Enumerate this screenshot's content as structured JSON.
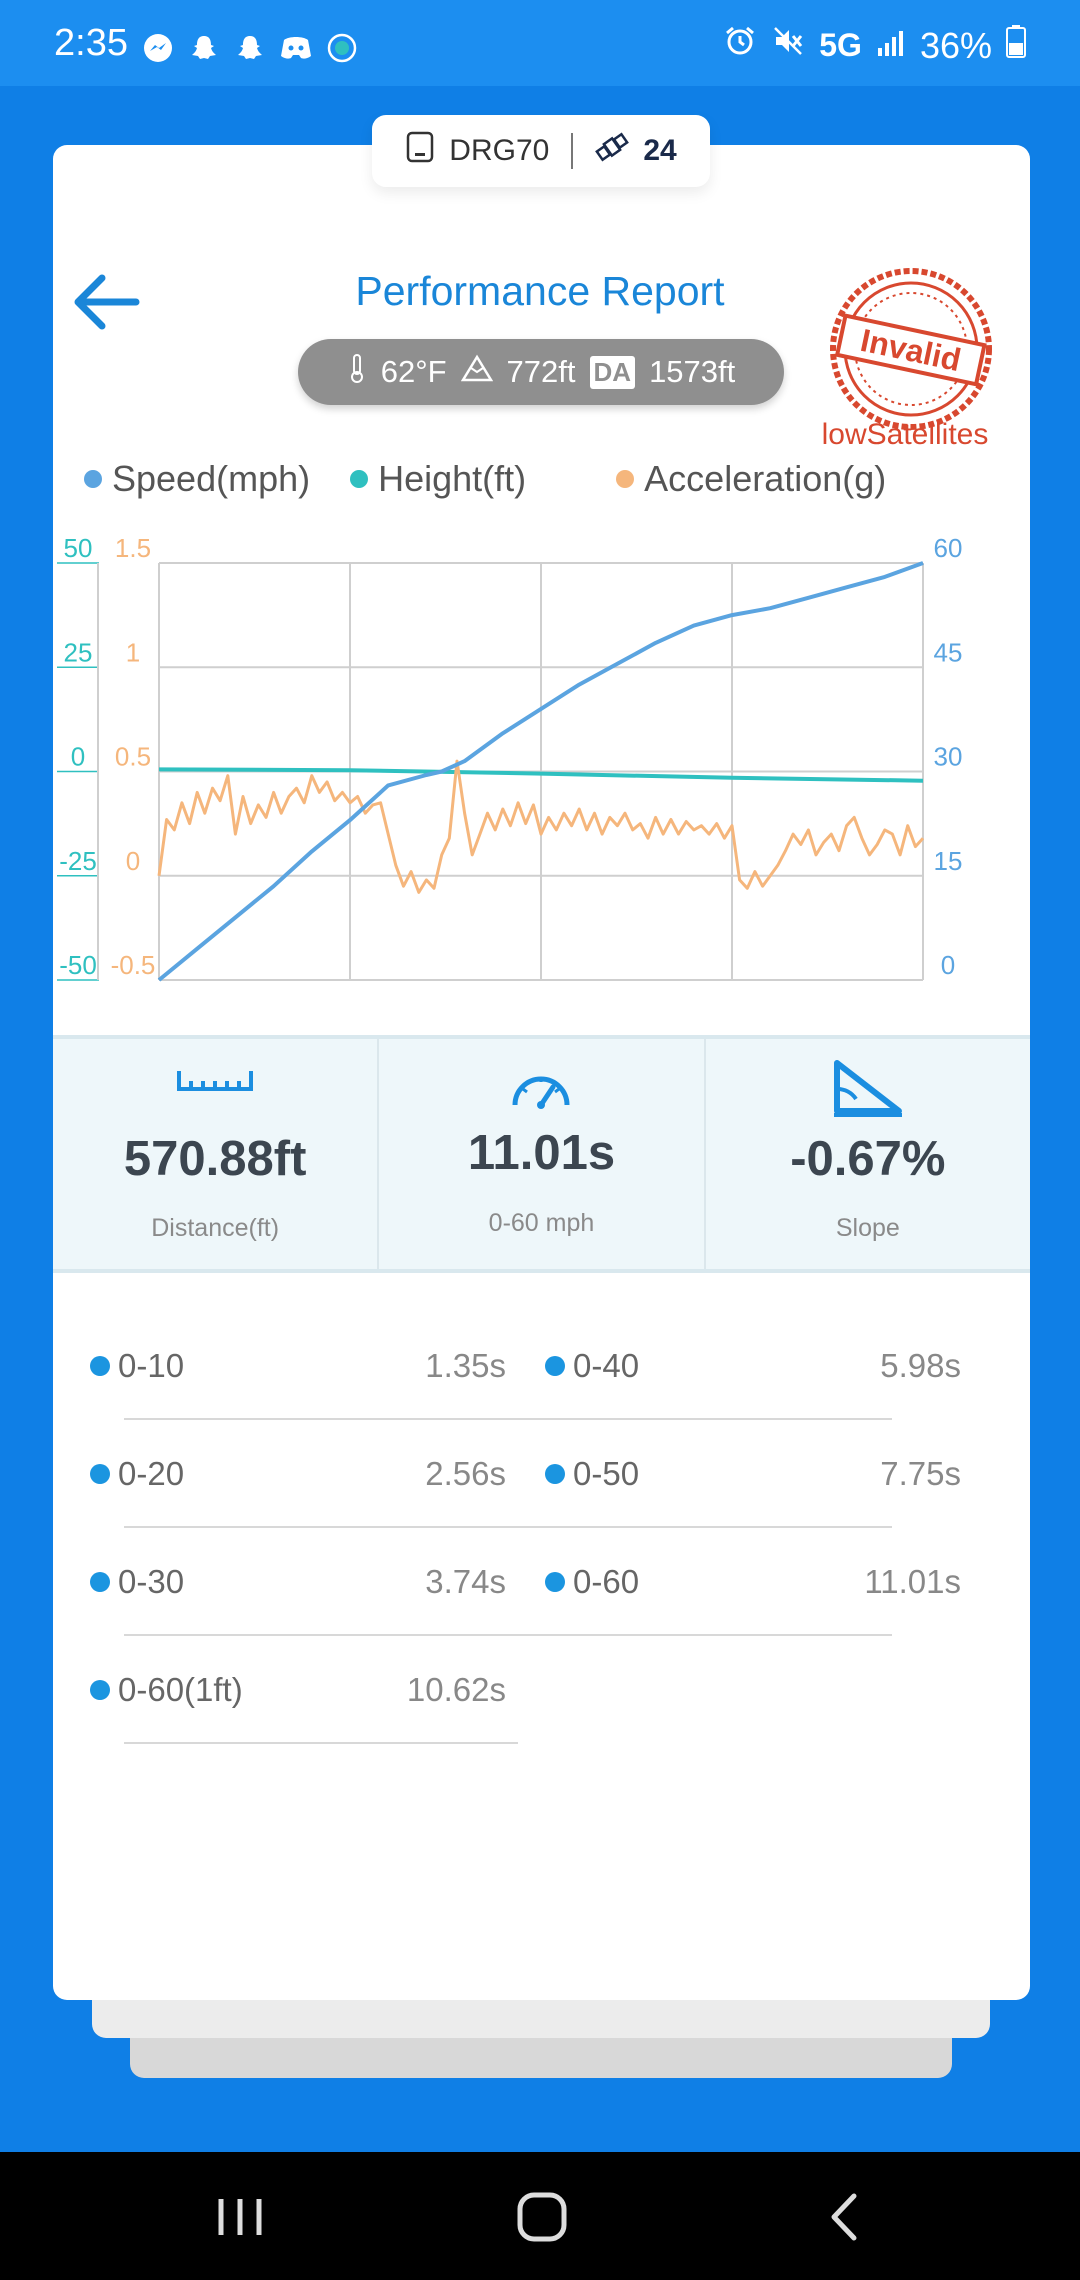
{
  "status_bar": {
    "time": "2:35",
    "network": "5G",
    "battery": "36%",
    "left_icons": [
      "messenger-icon",
      "snapchat-icon",
      "snapchat-icon",
      "discord-icon",
      "app-icon"
    ],
    "right_icons": [
      "alarm-icon",
      "mute-icon",
      "signal-icon",
      "battery-icon"
    ]
  },
  "device": {
    "name": "DRG70",
    "satellites": "24"
  },
  "header": {
    "title": "Performance Report",
    "temperature": "62°F",
    "altitude": "772ft",
    "da_label": "DA",
    "density_altitude": "1573ft",
    "stamp_text": "Invalid",
    "stamp_reason": "lowSatellites"
  },
  "chart_data": {
    "type": "line",
    "legend_position": "top",
    "grid": true,
    "series": [
      {
        "name": "Speed(mph)",
        "color": "#5ba4e0",
        "axis": "right",
        "x": [
          0,
          0.05,
          0.1,
          0.15,
          0.2,
          0.25,
          0.3,
          0.35,
          0.37,
          0.4,
          0.45,
          0.5,
          0.55,
          0.6,
          0.65,
          0.7,
          0.75,
          0.8,
          0.85,
          0.9,
          0.95,
          1.0
        ],
        "values": [
          0,
          4.5,
          9,
          13.5,
          18.5,
          23,
          28,
          29.5,
          30,
          31.5,
          35.5,
          39,
          42.5,
          45.5,
          48.5,
          51,
          52.5,
          53.5,
          55,
          56.5,
          58,
          60
        ]
      },
      {
        "name": "Height(ft)",
        "color": "#2fc0c0",
        "axis": "left_height",
        "x": [
          0,
          0.25,
          0.5,
          0.75,
          1.0
        ],
        "values": [
          0.5,
          0.3,
          -0.5,
          -1.5,
          -2.2
        ]
      },
      {
        "name": "Acceleration(g)",
        "color": "#f5b67c",
        "axis": "left_accel",
        "x": [
          0,
          0.01,
          0.02,
          0.03,
          0.04,
          0.05,
          0.06,
          0.07,
          0.08,
          0.09,
          0.1,
          0.11,
          0.12,
          0.13,
          0.14,
          0.15,
          0.16,
          0.17,
          0.18,
          0.19,
          0.2,
          0.21,
          0.22,
          0.23,
          0.24,
          0.25,
          0.26,
          0.27,
          0.28,
          0.29,
          0.3,
          0.31,
          0.32,
          0.33,
          0.34,
          0.35,
          0.36,
          0.37,
          0.38,
          0.39,
          0.4,
          0.41,
          0.42,
          0.43,
          0.44,
          0.45,
          0.46,
          0.47,
          0.48,
          0.49,
          0.5,
          0.51,
          0.52,
          0.53,
          0.54,
          0.55,
          0.56,
          0.57,
          0.58,
          0.59,
          0.6,
          0.61,
          0.62,
          0.63,
          0.64,
          0.65,
          0.66,
          0.67,
          0.68,
          0.69,
          0.7,
          0.71,
          0.72,
          0.73,
          0.74,
          0.75,
          0.76,
          0.77,
          0.78,
          0.79,
          0.8,
          0.81,
          0.82,
          0.83,
          0.84,
          0.85,
          0.86,
          0.87,
          0.88,
          0.89,
          0.9,
          0.91,
          0.92,
          0.93,
          0.94,
          0.95,
          0.96,
          0.97,
          0.98,
          0.99,
          1.0
        ],
        "values": [
          0.0,
          0.27,
          0.22,
          0.35,
          0.25,
          0.4,
          0.3,
          0.42,
          0.36,
          0.48,
          0.2,
          0.38,
          0.25,
          0.34,
          0.28,
          0.4,
          0.3,
          0.38,
          0.42,
          0.35,
          0.48,
          0.4,
          0.45,
          0.36,
          0.4,
          0.35,
          0.38,
          0.3,
          0.34,
          0.35,
          0.2,
          0.05,
          -0.05,
          0.02,
          -0.08,
          -0.02,
          -0.06,
          0.1,
          0.18,
          0.55,
          0.3,
          0.1,
          0.2,
          0.3,
          0.22,
          0.32,
          0.24,
          0.35,
          0.25,
          0.34,
          0.2,
          0.28,
          0.22,
          0.3,
          0.24,
          0.32,
          0.22,
          0.3,
          0.2,
          0.28,
          0.24,
          0.3,
          0.22,
          0.25,
          0.18,
          0.28,
          0.2,
          0.27,
          0.2,
          0.26,
          0.22,
          0.24,
          0.2,
          0.25,
          0.18,
          0.24,
          -0.02,
          -0.06,
          0.02,
          -0.05,
          0.0,
          0.05,
          0.12,
          0.2,
          0.15,
          0.22,
          0.1,
          0.16,
          0.2,
          0.12,
          0.24,
          0.28,
          0.18,
          0.1,
          0.15,
          0.22,
          0.2,
          0.1,
          0.24,
          0.14,
          0.18
        ]
      }
    ],
    "left_height_ticks": [
      "50",
      "25",
      "0",
      "-25",
      "-50"
    ],
    "left_height_range": [
      -50,
      50
    ],
    "left_accel_ticks": [
      "1.5",
      "1",
      "0.5",
      "0",
      "-0.5"
    ],
    "left_accel_range": [
      -0.5,
      1.5
    ],
    "right_ticks": [
      "60",
      "45",
      "30",
      "15",
      "0"
    ],
    "right_range": [
      0,
      60
    ]
  },
  "stats": [
    {
      "icon": "ruler-icon",
      "value": "570.88ft",
      "label": "Distance(ft)"
    },
    {
      "icon": "speedometer-icon",
      "value": "11.01s",
      "label": "0-60 mph"
    },
    {
      "icon": "slope-icon",
      "value": "-0.67%",
      "label": "Slope"
    }
  ],
  "splits": [
    {
      "label": "0-10",
      "value": "1.35s"
    },
    {
      "label": "0-40",
      "value": "5.98s"
    },
    {
      "label": "0-20",
      "value": "2.56s"
    },
    {
      "label": "0-50",
      "value": "7.75s"
    },
    {
      "label": "0-30",
      "value": "3.74s"
    },
    {
      "label": "0-60",
      "value": "11.01s"
    },
    {
      "label": "0-60(1ft)",
      "value": "10.62s"
    }
  ],
  "colors": {
    "app_blue": "#0f7fe6",
    "title_blue": "#1a86d8",
    "speed": "#5ba4e0",
    "height": "#2fc0c0",
    "acceleration": "#f5b67c",
    "invalid_red": "#d8482f"
  }
}
